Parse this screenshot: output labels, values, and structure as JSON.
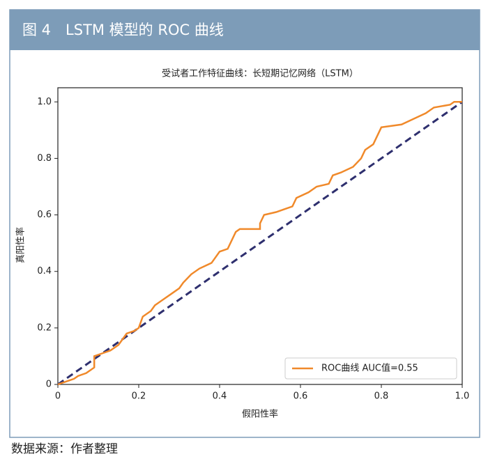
{
  "header": {
    "title": "图 4　LSTM 模型的 ROC 曲线"
  },
  "footer": {
    "source": "数据来源：作者整理"
  },
  "chart_data": {
    "type": "line",
    "title": "受试者工作特征曲线：长短期记忆网络（LSTM）",
    "x_label": "假阳性率",
    "y_label": "真阳性率",
    "xlim": [
      0,
      1
    ],
    "ylim": [
      0,
      1.05
    ],
    "xticks": [
      0,
      0.2,
      0.4,
      0.6,
      0.8,
      {
        "value": 1,
        "label": "1.0"
      }
    ],
    "yticks": [
      0,
      0.2,
      0.4,
      0.6,
      0.8,
      {
        "value": 1,
        "label": "1.0"
      }
    ],
    "grid": false,
    "legend": "lower right",
    "series": [
      {
        "name": "ROC曲线 AUC值=0.55",
        "color": "#f0892a",
        "x": [
          0,
          0.02,
          0.04,
          0.05,
          0.07,
          0.08,
          0.09,
          0.09,
          0.11,
          0.13,
          0.15,
          0.16,
          0.17,
          0.19,
          0.2,
          0.21,
          0.23,
          0.24,
          0.26,
          0.28,
          0.3,
          0.31,
          0.33,
          0.35,
          0.38,
          0.39,
          0.4,
          0.42,
          0.44,
          0.45,
          0.5,
          0.5,
          0.51,
          0.54,
          0.56,
          0.58,
          0.59,
          0.62,
          0.64,
          0.67,
          0.68,
          0.7,
          0.73,
          0.75,
          0.76,
          0.78,
          0.8,
          0.85,
          0.88,
          0.91,
          0.93,
          0.97,
          0.98,
          1.0
        ],
        "values": [
          0,
          0.01,
          0.02,
          0.03,
          0.04,
          0.05,
          0.06,
          0.1,
          0.11,
          0.12,
          0.14,
          0.16,
          0.18,
          0.19,
          0.2,
          0.24,
          0.26,
          0.28,
          0.3,
          0.32,
          0.34,
          0.36,
          0.39,
          0.41,
          0.43,
          0.45,
          0.47,
          0.48,
          0.54,
          0.55,
          0.55,
          0.57,
          0.6,
          0.61,
          0.62,
          0.63,
          0.66,
          0.68,
          0.7,
          0.71,
          0.74,
          0.75,
          0.77,
          0.8,
          0.83,
          0.85,
          0.91,
          0.92,
          0.94,
          0.96,
          0.98,
          0.99,
          1.0,
          1.0
        ]
      }
    ],
    "reference_line": {
      "x": [
        0,
        1
      ],
      "values": [
        0,
        1
      ],
      "color": "#2e2f6e"
    }
  }
}
